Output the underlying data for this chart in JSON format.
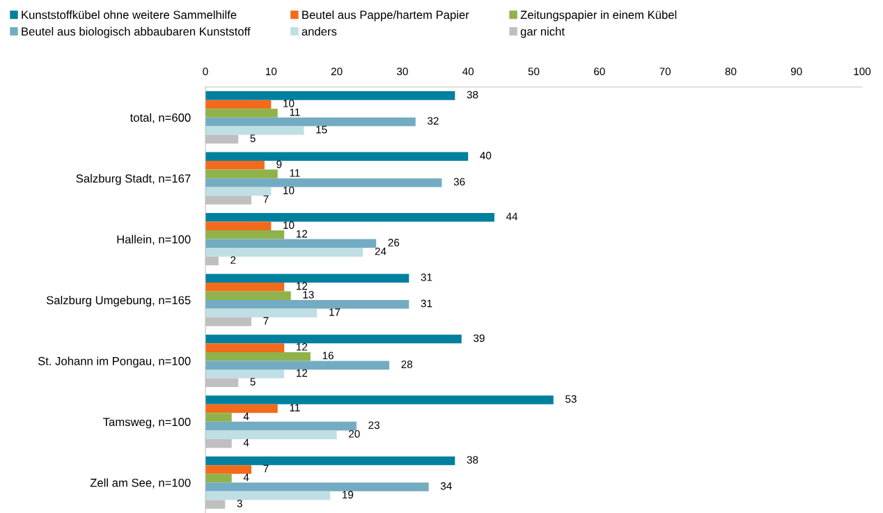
{
  "chart_data": {
    "type": "bar",
    "orientation": "horizontal",
    "categories": [
      "total, n=600",
      "Salzburg Stadt, n=167",
      "Hallein, n=100",
      "Salzburg Umgebung, n=165",
      "St. Johann im Pongau, n=100",
      "Tamsweg, n=100",
      "Zell am See, n=100"
    ],
    "series": [
      {
        "name": "Kunststoffkübel ohne weitere Sammelhilfe",
        "color": "#00809f",
        "values": [
          38,
          40,
          44,
          31,
          39,
          53,
          38
        ]
      },
      {
        "name": "Beutel aus Pappe/hartem Papier",
        "color": "#f26b1d",
        "values": [
          10,
          9,
          10,
          12,
          12,
          11,
          7
        ]
      },
      {
        "name": "Zeitungspapier in einem Kübel",
        "color": "#8fb34a",
        "values": [
          11,
          11,
          12,
          13,
          16,
          4,
          4
        ]
      },
      {
        "name": "Beutel aus biologisch abbaubaren Kunststoff",
        "color": "#73acc2",
        "values": [
          32,
          36,
          26,
          31,
          28,
          23,
          34
        ]
      },
      {
        "name": "anders",
        "color": "#bfdfe5",
        "values": [
          15,
          10,
          24,
          17,
          12,
          20,
          19
        ]
      },
      {
        "name": "gar nicht",
        "color": "#bfbfbf",
        "values": [
          5,
          7,
          2,
          7,
          5,
          4,
          3
        ]
      }
    ],
    "xlim": [
      0,
      100
    ],
    "xticks": [
      0,
      10,
      20,
      30,
      40,
      50,
      60,
      70,
      80,
      90,
      100
    ],
    "data_labels": true,
    "legend": "top",
    "grid": false
  }
}
